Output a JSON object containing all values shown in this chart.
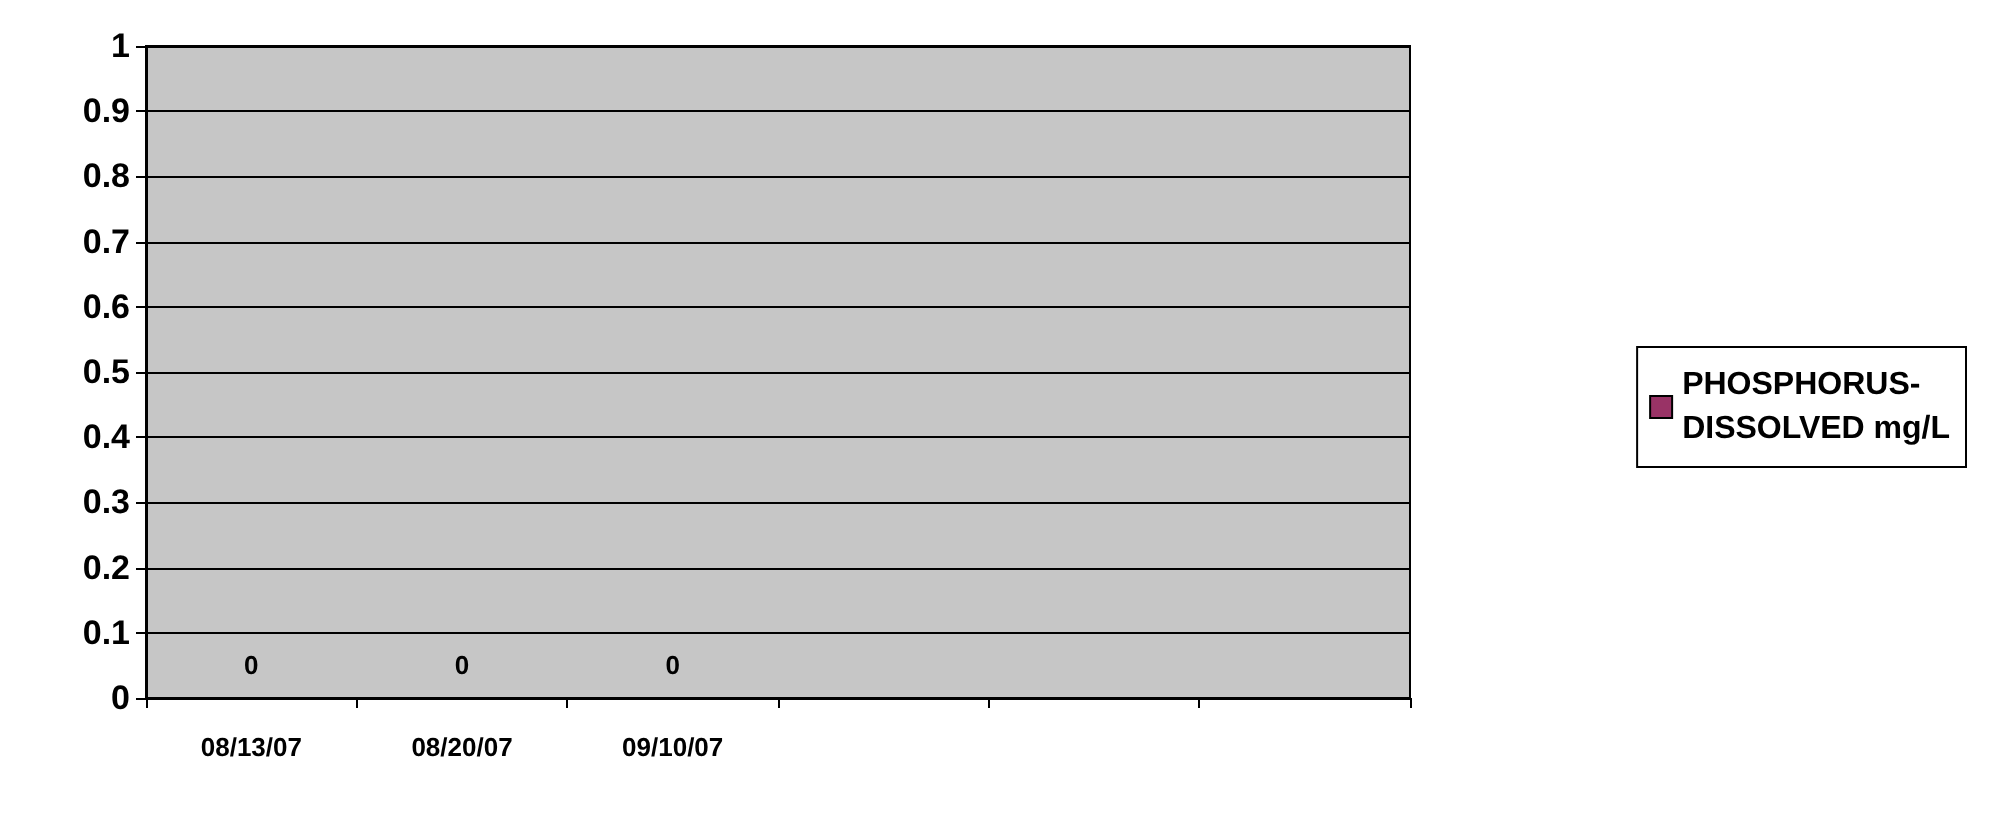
{
  "chart_data": {
    "type": "bar",
    "categories": [
      "08/13/07",
      "08/20/07",
      "09/10/07",
      null,
      null,
      null
    ],
    "series": [
      {
        "name": "PHOSPHORUS-DISSOLVED mg/L",
        "color": "#993366",
        "values": [
          0,
          0,
          0,
          null,
          null,
          null
        ]
      }
    ],
    "ylim": [
      0,
      1
    ],
    "yticks": [
      0,
      0.1,
      0.2,
      0.3,
      0.4,
      0.5,
      0.6,
      0.7,
      0.8,
      0.9,
      1
    ],
    "grid": "y",
    "legend": "right",
    "data_labels": true
  }
}
